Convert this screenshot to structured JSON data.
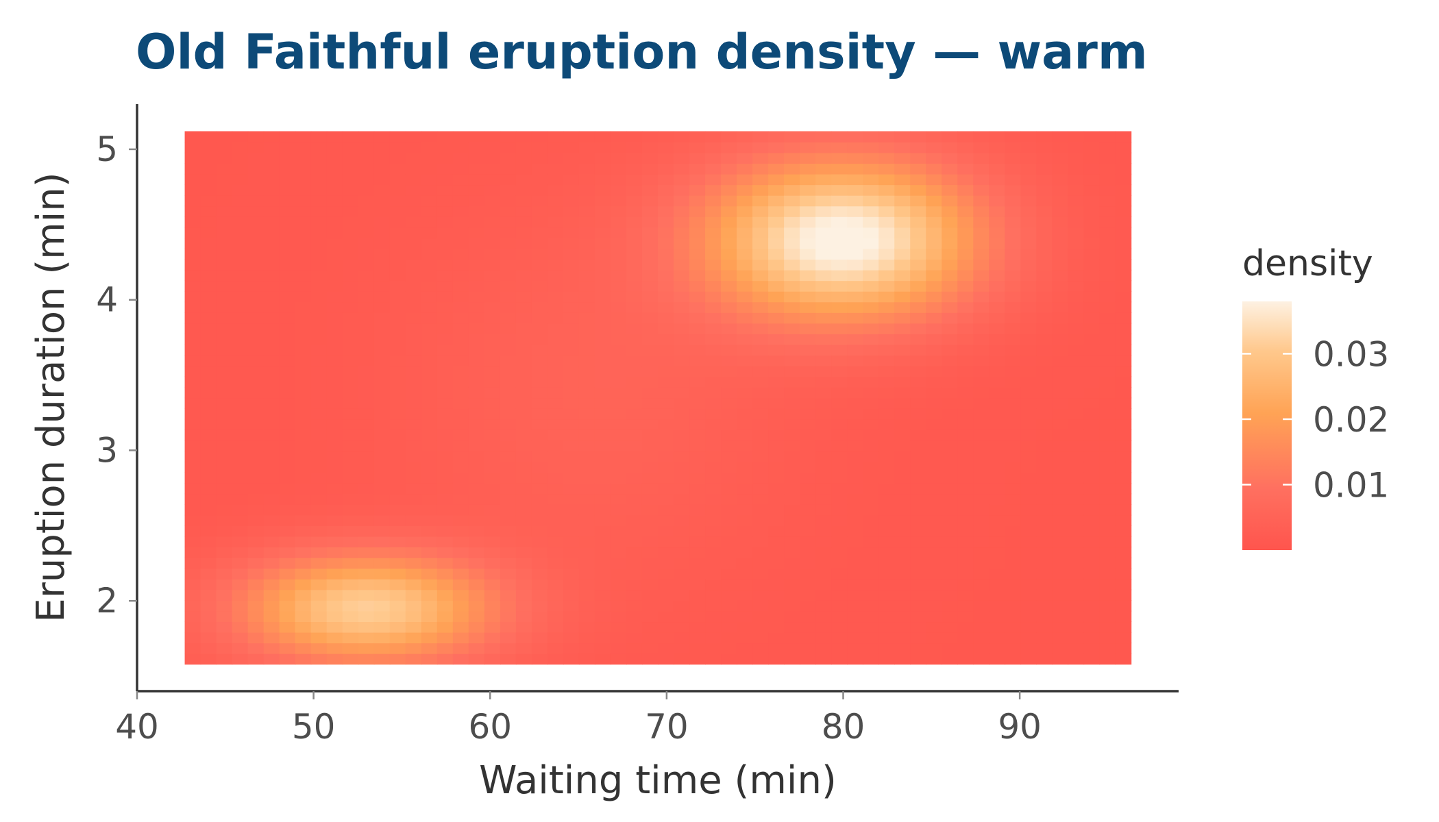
{
  "chart_data": {
    "type": "heatmap",
    "title": "Old Faithful eruption density — warm",
    "xlabel": "Waiting time (min)",
    "ylabel": "Eruption duration (min)",
    "xlim": [
      40,
      99
    ],
    "ylim": [
      1.4,
      5.3
    ],
    "x_ticks": [
      40,
      50,
      60,
      70,
      80,
      90
    ],
    "x_tick_labels": [
      "40",
      "50",
      "60",
      "70",
      "80",
      "90"
    ],
    "y_ticks": [
      2,
      3,
      4,
      5
    ],
    "y_tick_labels": [
      "2",
      "3",
      "4",
      "5"
    ],
    "grid": false,
    "tile_extent": {
      "x": [
        42.7,
        96.3
      ],
      "y": [
        1.58,
        5.12
      ]
    },
    "resolution": {
      "nx": 60,
      "ny": 50
    },
    "density_peaks": [
      {
        "x": 80.0,
        "y": 4.4,
        "density": 0.038
      },
      {
        "x": 53.0,
        "y": 1.95,
        "density": 0.03
      }
    ],
    "legend": {
      "title": "density",
      "placement": "right",
      "min": 0.0,
      "max": 0.038,
      "breaks": [
        0.01,
        0.02,
        0.03
      ],
      "break_labels": [
        "0.01",
        "0.02",
        "0.03"
      ]
    },
    "colors": {
      "low": "#ff554d",
      "mid_low": "#ff7060",
      "mid": "#ffa355",
      "mid_high": "#ffc88c",
      "high": "#fdf1e2",
      "title": "#0d4a78"
    }
  }
}
